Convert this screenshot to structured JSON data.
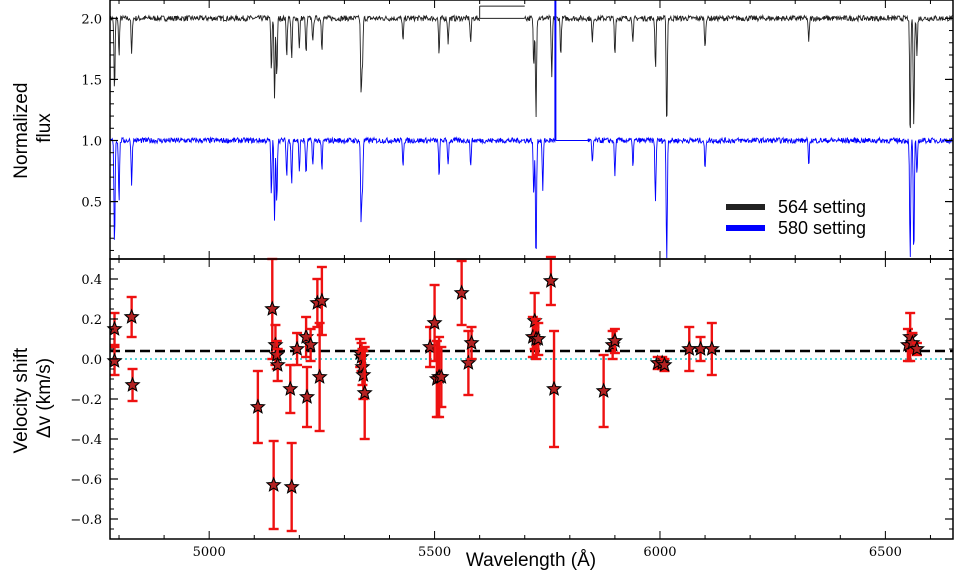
{
  "chart_data": [
    {
      "panel": "top",
      "type": "line",
      "ylabel": [
        "Normalized",
        "flux"
      ],
      "xlim": [
        4780,
        6650
      ],
      "ylim": [
        0.03,
        2.15
      ],
      "yticks": [
        0.5,
        1.0,
        1.5,
        2.0
      ],
      "ytick_labels": [
        "0.5",
        "1.0",
        "1.5",
        "2.0"
      ],
      "legend_position": "lower-right",
      "series": [
        {
          "name": "564 setting",
          "color": "#222222",
          "offset": 2.0,
          "segments": [
            [
              4780,
              5600
            ],
            [
              5700,
              6650
            ]
          ],
          "gap_fill": [
            [
              5600,
              5700
            ]
          ],
          "absorption_lines": [
            [
              4790,
              0.6
            ],
            [
              4800,
              0.3
            ],
            [
              4828,
              0.3
            ],
            [
              5138,
              0.45
            ],
            [
              5145,
              0.66
            ],
            [
              5150,
              0.5
            ],
            [
              5172,
              0.3
            ],
            [
              5183,
              0.35
            ],
            [
              5200,
              0.25
            ],
            [
              5215,
              0.3
            ],
            [
              5230,
              0.2
            ],
            [
              5250,
              0.25
            ],
            [
              5337,
              0.62
            ],
            [
              5340,
              0.4
            ],
            [
              5430,
              0.2
            ],
            [
              5510,
              0.3
            ],
            [
              5530,
              0.2
            ],
            [
              5580,
              0.2
            ],
            [
              5720,
              0.4
            ],
            [
              5725,
              0.8
            ],
            [
              5760,
              0.5
            ],
            [
              5780,
              0.3
            ],
            [
              5850,
              0.2
            ],
            [
              5900,
              0.3
            ],
            [
              5940,
              0.2
            ],
            [
              5990,
              0.4
            ],
            [
              6015,
              0.9
            ],
            [
              6100,
              0.25
            ],
            [
              6330,
              0.2
            ],
            [
              6555,
              1.0
            ],
            [
              6563,
              0.9
            ],
            [
              6570,
              0.3
            ]
          ]
        },
        {
          "name": "580 setting",
          "color": "#0000ff",
          "offset": 1.0,
          "segments": [
            [
              4780,
              5768
            ],
            [
              5840,
              6650
            ]
          ],
          "gap_fill": [
            [
              5768,
              5840
            ]
          ],
          "absorption_lines": [
            [
              4790,
              0.85
            ],
            [
              4800,
              0.5
            ],
            [
              4828,
              0.35
            ],
            [
              5138,
              0.45
            ],
            [
              5145,
              0.68
            ],
            [
              5150,
              0.5
            ],
            [
              5172,
              0.3
            ],
            [
              5183,
              0.35
            ],
            [
              5200,
              0.25
            ],
            [
              5215,
              0.3
            ],
            [
              5230,
              0.2
            ],
            [
              5250,
              0.25
            ],
            [
              5337,
              0.66
            ],
            [
              5340,
              0.4
            ],
            [
              5430,
              0.2
            ],
            [
              5510,
              0.3
            ],
            [
              5530,
              0.2
            ],
            [
              5580,
              0.2
            ],
            [
              5720,
              0.45
            ],
            [
              5725,
              0.98
            ],
            [
              5740,
              0.4
            ],
            [
              5850,
              0.2
            ],
            [
              5900,
              0.3
            ],
            [
              5940,
              0.2
            ],
            [
              5990,
              0.5
            ],
            [
              6015,
              0.98
            ],
            [
              6100,
              0.25
            ],
            [
              6330,
              0.2
            ],
            [
              6555,
              0.98
            ],
            [
              6563,
              0.95
            ],
            [
              6570,
              0.3
            ]
          ]
        }
      ]
    },
    {
      "panel": "bottom",
      "type": "scatter",
      "xlabel": "Wavelength (Å)",
      "ylabel": [
        "Velocity shift",
        "Δv (km/s)"
      ],
      "xlim": [
        4780,
        6650
      ],
      "ylim": [
        -0.9,
        0.5
      ],
      "xticks": [
        5000,
        5500,
        6000,
        6500
      ],
      "xtick_labels": [
        "5000",
        "5500",
        "6000",
        "6500"
      ],
      "yticks": [
        -0.8,
        -0.6,
        -0.4,
        -0.2,
        0.0,
        0.2,
        0.4
      ],
      "ytick_labels": [
        "−0.8",
        "−0.6",
        "−0.4",
        "−0.2",
        "0.0",
        "0.2",
        "0.4"
      ],
      "reference_lines": [
        {
          "y": 0.04,
          "color": "#000000",
          "style": "dashed"
        },
        {
          "y": 0.0,
          "color": "#22c5cc",
          "style": "dotted"
        }
      ],
      "points": [
        {
          "x": 4790,
          "y": 0.15,
          "err": 0.08
        },
        {
          "x": 4790,
          "y": -0.01,
          "err": 0.07
        },
        {
          "x": 4828,
          "y": 0.21,
          "err": 0.1
        },
        {
          "x": 4830,
          "y": -0.13,
          "err": 0.08
        },
        {
          "x": 5108,
          "y": -0.24,
          "err": 0.18
        },
        {
          "x": 5140,
          "y": 0.25,
          "err": 0.25
        },
        {
          "x": 5143,
          "y": -0.63,
          "err": 0.22
        },
        {
          "x": 5147,
          "y": 0.07,
          "err": 0.1
        },
        {
          "x": 5150,
          "y": 0.02,
          "err": 0.07
        },
        {
          "x": 5152,
          "y": -0.03,
          "err": 0.08
        },
        {
          "x": 5180,
          "y": -0.15,
          "err": 0.12
        },
        {
          "x": 5183,
          "y": -0.64,
          "err": 0.22
        },
        {
          "x": 5195,
          "y": 0.05,
          "err": 0.08
        },
        {
          "x": 5215,
          "y": 0.11,
          "err": 0.1
        },
        {
          "x": 5217,
          "y": -0.19,
          "err": 0.15
        },
        {
          "x": 5225,
          "y": 0.07,
          "err": 0.08
        },
        {
          "x": 5240,
          "y": 0.28,
          "err": 0.12
        },
        {
          "x": 5245,
          "y": -0.09,
          "err": 0.27
        },
        {
          "x": 5250,
          "y": 0.29,
          "err": 0.17
        },
        {
          "x": 5335,
          "y": 0.03,
          "err": 0.07
        },
        {
          "x": 5338,
          "y": 0.01,
          "err": 0.07
        },
        {
          "x": 5340,
          "y": -0.04,
          "err": 0.09
        },
        {
          "x": 5342,
          "y": -0.08,
          "err": 0.12
        },
        {
          "x": 5345,
          "y": -0.17,
          "err": 0.23
        },
        {
          "x": 5490,
          "y": 0.06,
          "err": 0.1
        },
        {
          "x": 5500,
          "y": 0.18,
          "err": 0.19
        },
        {
          "x": 5505,
          "y": -0.1,
          "err": 0.19
        },
        {
          "x": 5510,
          "y": -0.09,
          "err": 0.2
        },
        {
          "x": 5515,
          "y": -0.09,
          "err": 0.15
        },
        {
          "x": 5560,
          "y": 0.33,
          "err": 0.16
        },
        {
          "x": 5575,
          "y": -0.02,
          "err": 0.16
        },
        {
          "x": 5582,
          "y": 0.08,
          "err": 0.08
        },
        {
          "x": 5718,
          "y": 0.11,
          "err": 0.1
        },
        {
          "x": 5722,
          "y": 0.19,
          "err": 0.14
        },
        {
          "x": 5725,
          "y": 0.1,
          "err": 0.1
        },
        {
          "x": 5730,
          "y": 0.1,
          "err": 0.08
        },
        {
          "x": 5758,
          "y": 0.39,
          "err": 0.12
        },
        {
          "x": 5765,
          "y": -0.15,
          "err": 0.29
        },
        {
          "x": 5875,
          "y": -0.16,
          "err": 0.18
        },
        {
          "x": 5895,
          "y": 0.07,
          "err": 0.07
        },
        {
          "x": 5900,
          "y": 0.09,
          "err": 0.06
        },
        {
          "x": 5995,
          "y": -0.02,
          "err": 0.03
        },
        {
          "x": 6005,
          "y": -0.02,
          "err": 0.03
        },
        {
          "x": 6010,
          "y": -0.03,
          "err": 0.03
        },
        {
          "x": 6065,
          "y": 0.05,
          "err": 0.11
        },
        {
          "x": 6090,
          "y": 0.05,
          "err": 0.06
        },
        {
          "x": 6115,
          "y": 0.05,
          "err": 0.13
        },
        {
          "x": 6550,
          "y": 0.07,
          "err": 0.08
        },
        {
          "x": 6555,
          "y": 0.11,
          "err": 0.12
        },
        {
          "x": 6560,
          "y": 0.08,
          "err": 0.05
        },
        {
          "x": 6570,
          "y": 0.05,
          "err": 0.03
        }
      ],
      "marker": {
        "shape": "star",
        "fill": "#b22222",
        "edge": "#000000",
        "errorbar_color": "#ee1111"
      }
    }
  ]
}
